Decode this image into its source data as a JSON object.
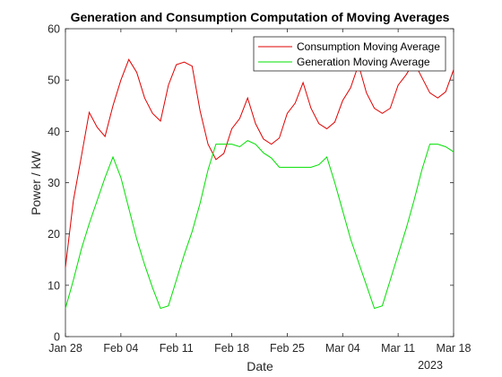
{
  "chart_data": {
    "type": "line",
    "title": "Generation and Consumption Computation of Moving Averages",
    "xlabel": "Date",
    "ylabel": "Power / kW",
    "x_axis_year": "2023",
    "x_tick_labels": [
      "Jan 28",
      "Feb 04",
      "Feb 11",
      "Feb 18",
      "Feb 25",
      "Mar 04",
      "Mar 11",
      "Mar 18"
    ],
    "x_range": [
      "2023-01-28",
      "2023-03-18"
    ],
    "ylim": [
      0,
      60
    ],
    "y_ticks": [
      0,
      10,
      20,
      30,
      40,
      50,
      60
    ],
    "grid": false,
    "legend_position": "top-right",
    "x": [
      "2023-01-28",
      "2023-01-29",
      "2023-01-30",
      "2023-01-31",
      "2023-02-01",
      "2023-02-02",
      "2023-02-03",
      "2023-02-04",
      "2023-02-05",
      "2023-02-06",
      "2023-02-07",
      "2023-02-08",
      "2023-02-09",
      "2023-02-10",
      "2023-02-11",
      "2023-02-12",
      "2023-02-13",
      "2023-02-14",
      "2023-02-15",
      "2023-02-16",
      "2023-02-17",
      "2023-02-18",
      "2023-02-19",
      "2023-02-20",
      "2023-02-21",
      "2023-02-22",
      "2023-02-23",
      "2023-02-24",
      "2023-02-25",
      "2023-02-26",
      "2023-02-27",
      "2023-02-28",
      "2023-03-01",
      "2023-03-02",
      "2023-03-03",
      "2023-03-04",
      "2023-03-05",
      "2023-03-06",
      "2023-03-07",
      "2023-03-08",
      "2023-03-09",
      "2023-03-10",
      "2023-03-11",
      "2023-03-12",
      "2023-03-13",
      "2023-03-14",
      "2023-03-15",
      "2023-03-16",
      "2023-03-17",
      "2023-03-18"
    ],
    "series": [
      {
        "name": "Consumption Moving Average",
        "color": "#e00000",
        "values": [
          13.5,
          26.5,
          35,
          43.7,
          40.8,
          39,
          45,
          50,
          54,
          51.5,
          46.5,
          43.5,
          42,
          49,
          53,
          53.5,
          52.7,
          44,
          37.5,
          34.5,
          35.7,
          40.5,
          42.5,
          46.5,
          41.5,
          38.5,
          37.5,
          38.7,
          43.5,
          45.5,
          49.5,
          44.5,
          41.5,
          40.5,
          41.8,
          46,
          48.5,
          53,
          47.5,
          44.5,
          43.5,
          44.5,
          49,
          51,
          53.5,
          50.5,
          47.5,
          46.5,
          47.7,
          52
        ]
      },
      {
        "name": "Generation Moving Average",
        "color": "#00e000",
        "values": [
          5.5,
          11,
          17,
          22,
          26.5,
          31,
          35,
          31,
          25,
          19,
          14,
          9.5,
          5.5,
          6,
          11,
          16,
          20.5,
          26,
          32.5,
          37.5,
          37.5,
          37.5,
          37,
          38.2,
          37.5,
          35.8,
          34.8,
          33,
          33,
          33,
          33,
          33,
          33.5,
          35,
          30,
          24.5,
          19,
          14.5,
          10,
          5.5,
          6,
          11,
          16,
          21,
          26.5,
          32.5,
          37.5,
          37.5,
          37,
          36
        ]
      }
    ]
  }
}
